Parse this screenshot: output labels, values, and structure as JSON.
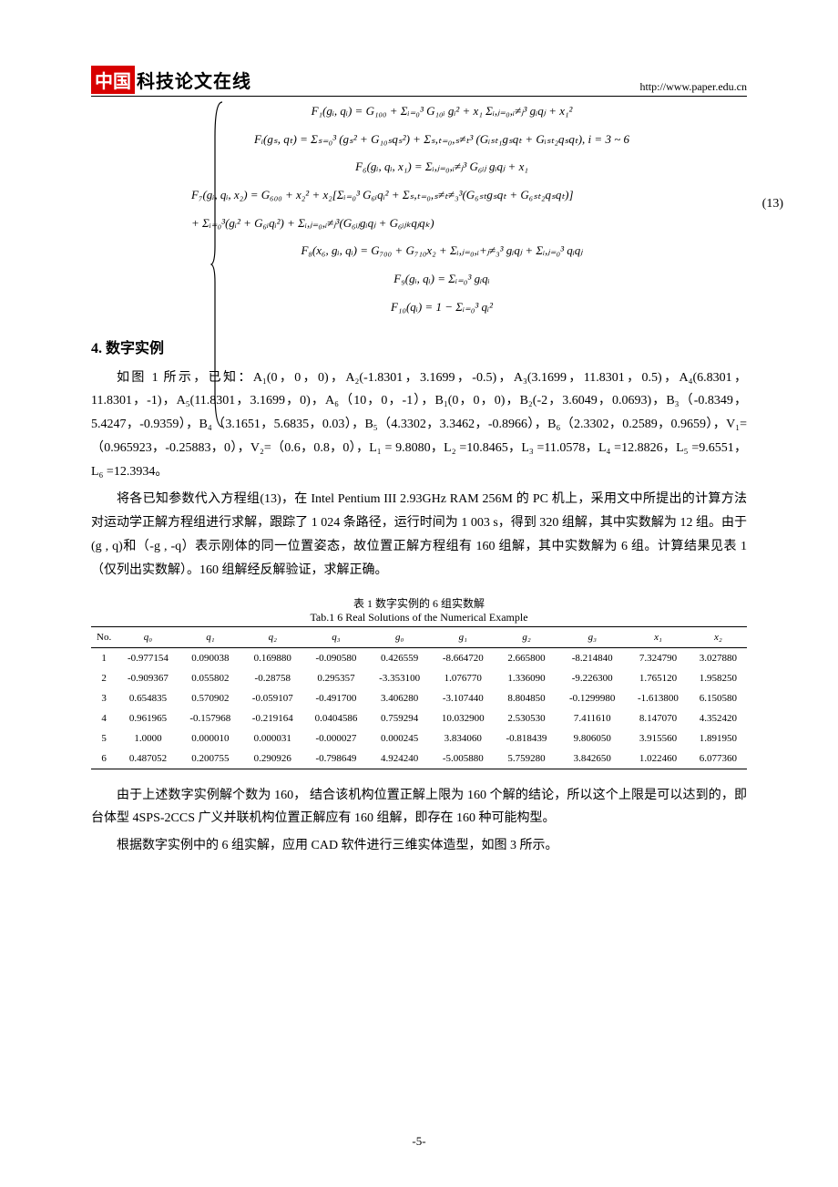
{
  "header": {
    "logo_red": "中国",
    "logo_black": "科技论文在线",
    "url": "http://www.paper.edu.cn"
  },
  "equations": {
    "number": "(13)",
    "lines": [
      "F₁(gᵢ, qᵢ) = G₁₀₀ + Σᵢ₌₀³ G₁₀ᵢ gᵢ² + x₁ Σᵢ,ⱼ₌₀,ᵢ≠ⱼ³ gᵢqⱼ + x₁²",
      "Fᵢ(gₛ, qₜ) = Σₛ₌₀³ (gₛ² + G₁₀ₛqₛ²) + Σₛ,ₜ₌₀,ₛ≠ₜ³ (Gᵢₛₜ₁gₛqₜ + Gᵢₛₜ₂qₛqₜ), i = 3 ~ 6",
      "F₆(gᵢ, qᵢ, x₁) = Σᵢ,ⱼ₌₀,ᵢ≠ⱼ³ G₆ᵢⱼ gᵢqⱼ + x₁",
      "F₇(gᵢ, qᵢ, x₂) = G₆₀₀ + x₂² + x₂[Σᵢ₌₀³ G₆ᵢqᵢ² + Σₛ,ₜ₌₀,ₛ≠ₜ≠₃³(G₆ₛₜgₛqₜ + G₆ₛₜ₂qₛqₜ)]",
      "+ Σᵢ₌₀³(gᵢ² + G₆ᵢqᵢ²) + Σᵢ,ⱼ₌₀,ᵢ≠ⱼ³(G₆ᵢⱼgᵢqⱼ + G₆ᵢⱼₖqⱼqₖ)",
      "F₈(x₆, gᵢ, qᵢ) = G₇₀₀ + G₇₁₀x₂ + Σᵢ,ⱼ₌₀,ᵢ+ⱼ≠₃³ gᵢqⱼ + Σᵢ,ⱼ₌₀³ qᵢqⱼ",
      "F₉(gᵢ, qᵢ) = Σᵢ₌₀³ gᵢqᵢ",
      "F₁₀(qᵢ) = 1 − Σᵢ₌₀³ qᵢ²"
    ]
  },
  "section4": {
    "heading": "4. 数字实例",
    "para1": "如图 1 所示，已知：A₁(0，0，0)，A₂(-1.8301，3.1699，-0.5)，A₃(3.1699，11.8301，0.5)，A₄(6.8301，11.8301，-1)，A₅(11.8301，3.1699，0)，A₆（10，0，-1），B₁(0，0，0)，B₂(-2，3.6049，0.0693)，B₃（-0.8349，5.4247，-0.9359），B₄（3.1651，5.6835，0.03），B₅（4.3302，3.3462，-0.8966），B₆（2.3302，0.2589，0.9659），V₁=（0.965923，-0.25883，0），V₂=（0.6，0.8，0），L₁ = 9.8080，L₂ =10.8465，L₃ =11.0578，L₄ =12.8826，L₅ =9.6551，L₆ =12.3934。",
    "para2": "将各已知参数代入方程组(13)，在 Intel Pentium III 2.93GHz RAM 256M 的 PC 机上，采用文中所提出的计算方法对运动学正解方程组进行求解，跟踪了 1 024 条路径，运行时间为 1 003 s，得到 320 组解，其中实数解为 12 组。由于(g , q)和（-g , -q）表示刚体的同一位置姿态，故位置正解方程组有 160 组解，其中实数解为 6 组。计算结果见表 1（仅列出实数解）。160 组解经反解验证，求解正确。"
  },
  "table": {
    "caption_cn": "表 1   数字实例的 6 组实数解",
    "caption_en": "Tab.1 6 Real Solutions of the Numerical Example",
    "columns": [
      "No.",
      "q₀",
      "q₁",
      "q₂",
      "q₃",
      "g₀",
      "g₁",
      "g₂",
      "g₃",
      "x₁",
      "x₂"
    ],
    "rows": [
      [
        "1",
        "-0.977154",
        "0.090038",
        "0.169880",
        "-0.090580",
        "0.426559",
        "-8.664720",
        "2.665800",
        "-8.214840",
        "7.324790",
        "3.027880"
      ],
      [
        "2",
        "-0.909367",
        "0.055802",
        "-0.28758",
        "0.295357",
        "-3.353100",
        "1.076770",
        "1.336090",
        "-9.226300",
        "1.765120",
        "1.958250"
      ],
      [
        "3",
        "0.654835",
        "0.570902",
        "-0.059107",
        "-0.491700",
        "3.406280",
        "-3.107440",
        "8.804850",
        "-0.1299980",
        "-1.613800",
        "6.150580"
      ],
      [
        "4",
        "0.961965",
        "-0.157968",
        "-0.219164",
        "0.0404586",
        "0.759294",
        "10.032900",
        "2.530530",
        "7.411610",
        "8.147070",
        "4.352420"
      ],
      [
        "5",
        "1.0000",
        "0.000010",
        "0.000031",
        "-0.000027",
        "0.000245",
        "3.834060",
        "-0.818439",
        "9.806050",
        "3.915560",
        "1.891950"
      ],
      [
        "6",
        "0.487052",
        "0.200755",
        "0.290926",
        "-0.798649",
        "4.924240",
        "-5.005880",
        "5.759280",
        "3.842650",
        "1.022460",
        "6.077360"
      ]
    ]
  },
  "closing": {
    "para1": "由于上述数字实例解个数为 160， 结合该机构位置正解上限为 160 个解的结论，所以这个上限是可以达到的，即台体型 4SPS-2CCS 广义并联机构位置正解应有 160 组解，即存在 160 种可能构型。",
    "para2": "根据数字实例中的 6 组实解，应用 CAD 软件进行三维实体造型，如图 3 所示。"
  },
  "page_number": "-5-"
}
